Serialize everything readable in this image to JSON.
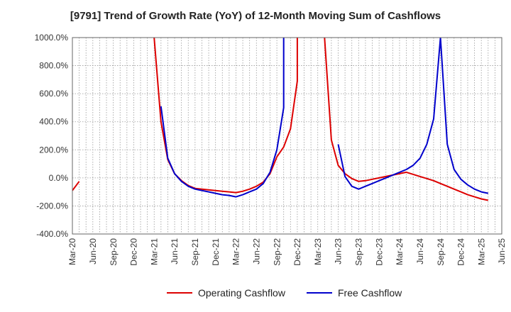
{
  "chart_data": {
    "type": "line",
    "title": "[9791]  Trend of Growth Rate (YoY) of 12-Month Moving Sum of Cashflows",
    "xlabel": "",
    "ylabel": "",
    "ylim": [
      -400,
      1000
    ],
    "yticks": [
      1000,
      800,
      600,
      400,
      200,
      0,
      -200,
      -400
    ],
    "ytick_labels": [
      "1000.0%",
      "800.0%",
      "600.0%",
      "400.0%",
      "200.0%",
      "0.0%",
      "-200.0%",
      "-400.0%"
    ],
    "xtick_labels": [
      "Mar-20",
      "Jun-20",
      "Sep-20",
      "Dec-20",
      "Mar-21",
      "Jun-21",
      "Sep-21",
      "Dec-21",
      "Mar-22",
      "Jun-22",
      "Sep-22",
      "Dec-22",
      "Mar-23",
      "Jun-23",
      "Sep-23",
      "Dec-23",
      "Mar-24",
      "Jun-24",
      "Sep-24",
      "Dec-24",
      "Mar-25",
      "Jun-25"
    ],
    "x_months_start": "2020-03",
    "x_months_count": 64,
    "grid": true,
    "legend_position": "bottom",
    "series": [
      {
        "name": "Operating Cashflow",
        "color": "#dd0000",
        "points": [
          [
            "2020-03",
            -90
          ],
          [
            "2020-04",
            -25
          ],
          [
            "2021-03",
            1000
          ],
          [
            "2021-04",
            400
          ],
          [
            "2021-05",
            130
          ],
          [
            "2021-06",
            30
          ],
          [
            "2021-07",
            -20
          ],
          [
            "2021-08",
            -55
          ],
          [
            "2021-09",
            -75
          ],
          [
            "2021-10",
            -80
          ],
          [
            "2021-11",
            -85
          ],
          [
            "2021-12",
            -90
          ],
          [
            "2022-01",
            -95
          ],
          [
            "2022-02",
            -100
          ],
          [
            "2022-03",
            -105
          ],
          [
            "2022-04",
            -95
          ],
          [
            "2022-05",
            -80
          ],
          [
            "2022-06",
            -60
          ],
          [
            "2022-07",
            -30
          ],
          [
            "2022-08",
            30
          ],
          [
            "2022-09",
            150
          ],
          [
            "2022-10",
            220
          ],
          [
            "2022-11",
            350
          ],
          [
            "2022-12",
            690
          ],
          [
            "2022-12",
            1000
          ],
          [
            "2023-04",
            1000
          ],
          [
            "2023-05",
            270
          ],
          [
            "2023-06",
            90
          ],
          [
            "2023-07",
            30
          ],
          [
            "2023-08",
            -5
          ],
          [
            "2023-09",
            -25
          ],
          [
            "2023-10",
            -20
          ],
          [
            "2023-11",
            -10
          ],
          [
            "2023-12",
            0
          ],
          [
            "2024-01",
            10
          ],
          [
            "2024-02",
            20
          ],
          [
            "2024-03",
            30
          ],
          [
            "2024-04",
            40
          ],
          [
            "2024-05",
            25
          ],
          [
            "2024-06",
            10
          ],
          [
            "2024-07",
            -5
          ],
          [
            "2024-08",
            -20
          ],
          [
            "2024-09",
            -40
          ],
          [
            "2024-10",
            -60
          ],
          [
            "2024-11",
            -80
          ],
          [
            "2024-12",
            -100
          ],
          [
            "2025-01",
            -120
          ],
          [
            "2025-02",
            -135
          ],
          [
            "2025-03",
            -150
          ],
          [
            "2025-04",
            -160
          ]
        ]
      },
      {
        "name": "Free Cashflow",
        "color": "#0000cc",
        "points": [
          [
            "2021-04",
            510
          ],
          [
            "2021-05",
            140
          ],
          [
            "2021-06",
            30
          ],
          [
            "2021-07",
            -25
          ],
          [
            "2021-08",
            -60
          ],
          [
            "2021-09",
            -80
          ],
          [
            "2021-10",
            -90
          ],
          [
            "2021-11",
            -100
          ],
          [
            "2021-12",
            -110
          ],
          [
            "2022-01",
            -120
          ],
          [
            "2022-02",
            -125
          ],
          [
            "2022-03",
            -135
          ],
          [
            "2022-04",
            -120
          ],
          [
            "2022-05",
            -100
          ],
          [
            "2022-06",
            -80
          ],
          [
            "2022-07",
            -40
          ],
          [
            "2022-08",
            40
          ],
          [
            "2022-09",
            200
          ],
          [
            "2022-10",
            500
          ],
          [
            "2022-10",
            1000
          ],
          [
            "2023-06",
            240
          ],
          [
            "2023-07",
            10
          ],
          [
            "2023-08",
            -60
          ],
          [
            "2023-09",
            -80
          ],
          [
            "2023-10",
            -60
          ],
          [
            "2023-11",
            -40
          ],
          [
            "2023-12",
            -20
          ],
          [
            "2024-01",
            0
          ],
          [
            "2024-02",
            20
          ],
          [
            "2024-03",
            40
          ],
          [
            "2024-04",
            60
          ],
          [
            "2024-05",
            90
          ],
          [
            "2024-06",
            140
          ],
          [
            "2024-07",
            240
          ],
          [
            "2024-08",
            420
          ],
          [
            "2024-09",
            1000
          ],
          [
            "2024-10",
            240
          ],
          [
            "2024-11",
            60
          ],
          [
            "2024-12",
            -10
          ],
          [
            "2025-01",
            -50
          ],
          [
            "2025-02",
            -80
          ],
          [
            "2025-03",
            -100
          ],
          [
            "2025-04",
            -110
          ]
        ]
      }
    ]
  }
}
